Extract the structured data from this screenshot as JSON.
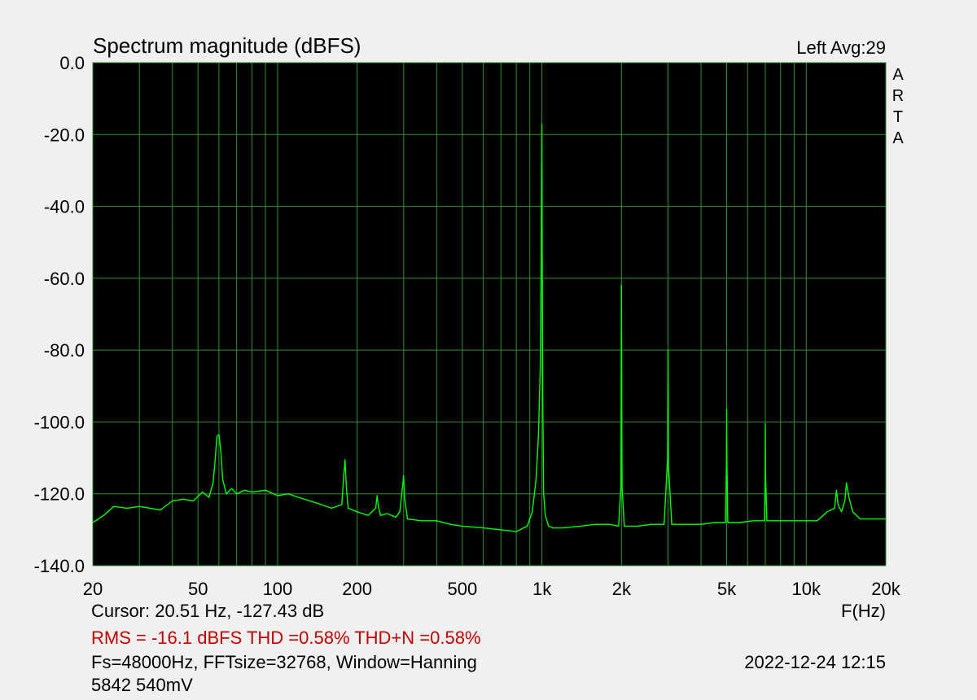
{
  "header": {
    "title": "Spectrum magnitude (dBFS)",
    "channel_label": "Left  Avg:29",
    "brand_letters": [
      "A",
      "R",
      "T",
      "A"
    ]
  },
  "colors": {
    "plot_background": "#000000",
    "grid": "#2f8f2f",
    "trace": "#00ff00",
    "stats_text": "#c00000",
    "page_background": "#f0f0f0"
  },
  "chart_data": {
    "type": "line",
    "title": "Spectrum magnitude (dBFS)",
    "xlabel": "F(Hz)",
    "ylabel": "",
    "x_scale": "log",
    "xlim": [
      20,
      20000
    ],
    "ylim": [
      -140,
      0
    ],
    "grid": true,
    "x_ticks": [
      {
        "value": 20,
        "label": "20"
      },
      {
        "value": 50,
        "label": "50"
      },
      {
        "value": 100,
        "label": "100"
      },
      {
        "value": 200,
        "label": "200"
      },
      {
        "value": 500,
        "label": "500"
      },
      {
        "value": 1000,
        "label": "1k"
      },
      {
        "value": 2000,
        "label": "2k"
      },
      {
        "value": 5000,
        "label": "5k"
      },
      {
        "value": 10000,
        "label": "10k"
      },
      {
        "value": 20000,
        "label": "20k"
      }
    ],
    "y_ticks": [
      {
        "value": 0,
        "label": "0.0"
      },
      {
        "value": -20,
        "label": "-20.0"
      },
      {
        "value": -40,
        "label": "-40.0"
      },
      {
        "value": -60,
        "label": "-60.0"
      },
      {
        "value": -80,
        "label": "-80.0"
      },
      {
        "value": -100,
        "label": "-100.0"
      },
      {
        "value": -120,
        "label": "-120.0"
      },
      {
        "value": -140,
        "label": "-140.0"
      }
    ],
    "series": [
      {
        "color": "#00ff00",
        "x": [
          20,
          22,
          24,
          27,
          30,
          33,
          36,
          40,
          44,
          48,
          52,
          55,
          57,
          58,
          59,
          60,
          61,
          62,
          64,
          67,
          70,
          75,
          80,
          90,
          100,
          110,
          120,
          140,
          160,
          175,
          178,
          180,
          182,
          185,
          200,
          220,
          235,
          238,
          240,
          245,
          260,
          280,
          290,
          298,
          300,
          302,
          310,
          350,
          400,
          450,
          500,
          600,
          700,
          800,
          880,
          920,
          950,
          970,
          985,
          992,
          997,
          1000,
          1003,
          1008,
          1015,
          1030,
          1060,
          1100,
          1200,
          1400,
          1600,
          1800,
          1950,
          1990,
          2000,
          2010,
          2050,
          2300,
          2600,
          2900,
          2990,
          3000,
          3010,
          3100,
          3500,
          4000,
          4500,
          4950,
          4990,
          5000,
          5010,
          5050,
          5600,
          6300,
          6950,
          6990,
          7000,
          7010,
          7100,
          8000,
          9000,
          10000,
          11000,
          12000,
          12800,
          13000,
          13200,
          13600,
          14000,
          14200,
          14500,
          15000,
          16000,
          17000,
          18000,
          19000,
          20000
        ],
        "y": [
          -128,
          -126,
          -123.5,
          -124,
          -123.5,
          -124,
          -124.5,
          -122,
          -121.5,
          -122,
          -119.5,
          -121,
          -117,
          -111,
          -104,
          -103.5,
          -108,
          -116,
          -120,
          -118.5,
          -120,
          -119,
          -119.5,
          -119,
          -120.5,
          -120,
          -121,
          -122.5,
          -124,
          -123,
          -115,
          -110.5,
          -118,
          -124,
          -125,
          -126,
          -124,
          -120.5,
          -123,
          -126,
          -125.5,
          -126.5,
          -125,
          -117,
          -115,
          -121,
          -127,
          -127.5,
          -127.5,
          -128.5,
          -129,
          -129.5,
          -130,
          -130.5,
          -129,
          -125,
          -116,
          -104,
          -86,
          -60,
          -30,
          -17,
          -55,
          -95,
          -120,
          -126,
          -129,
          -129.5,
          -129.5,
          -129,
          -128.5,
          -128.5,
          -129,
          -118,
          -62,
          -118,
          -129,
          -129,
          -128.5,
          -128.5,
          -110,
          -80,
          -112,
          -128.5,
          -128.5,
          -128.5,
          -128,
          -128,
          -112,
          -96.5,
          -110,
          -128,
          -128,
          -127.5,
          -127.5,
          -115,
          -100.5,
          -114,
          -127.5,
          -127.5,
          -127.5,
          -127.5,
          -127.5,
          -125,
          -124,
          -119,
          -123,
          -125,
          -122,
          -117,
          -121,
          -125,
          -127,
          -127,
          -127,
          -127,
          -127
        ]
      }
    ]
  },
  "footer": {
    "cursor_readout": "Cursor: 20.51 Hz, -127.43 dB",
    "x_unit": "F(Hz)",
    "stats": "RMS =  -16.1 dBFS  THD =0.58%  THD+N =0.58%",
    "params": "Fs=48000Hz, FFTsize=32768, Window=Hanning",
    "timestamp": "2022-12-24  12:15",
    "note": "5842 540mV"
  }
}
